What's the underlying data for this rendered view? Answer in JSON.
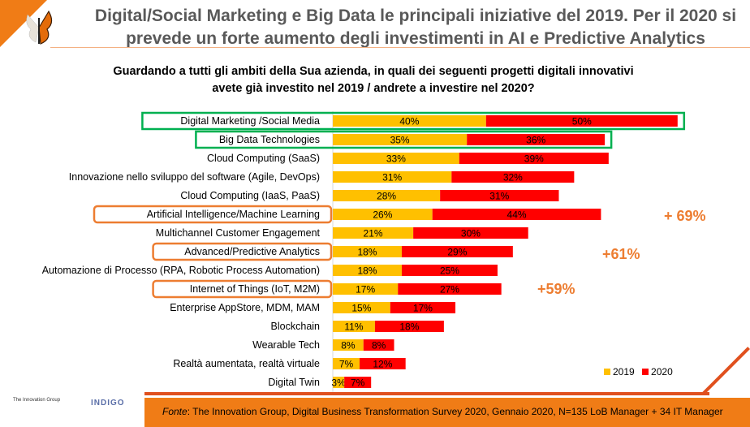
{
  "title": "Digital/Social Marketing e Big Data le principali iniziative del 2019. Per il 2020 si prevede un forte aumento degli investimenti in AI e Predictive Analytics",
  "question_line1": "Guardando a tutti gli ambiti della Sua azienda, in quali dei seguenti progetti digitali innovativi",
  "question_line2": "avete già investito nel 2019 / andrete a investire nel 2020?",
  "source_prefix": "Fonte",
  "source_text": ": The Innovation Group, Digital Business Transformation Survey 2020, Gennaio 2020, N=135 LoB Manager + 34 IT Manager",
  "logos": {
    "left": "The Innovation Group",
    "right": "INDIGO"
  },
  "colors": {
    "y2019": "#ffc000",
    "y2020": "#ff0000",
    "accent": "#ed7d31",
    "green": "#00b050"
  },
  "growth": [
    "+ 69%",
    "+61%",
    "+59%"
  ],
  "chart_data": {
    "type": "bar",
    "stacked": true,
    "orientation": "horizontal",
    "categories": [
      "Digital Marketing /Social Media",
      "Big Data Technologies",
      "Cloud Computing (SaaS)",
      "Innovazione nello sviluppo del software (Agile, DevOps)",
      "Cloud Computing (IaaS, PaaS)",
      "Artificial Intelligence/Machine Learning",
      "Multichannel Customer Engagement",
      "Advanced/Predictive Analytics",
      "Automazione di Processo (RPA, Robotic Process Automation)",
      "Internet of Things (IoT, M2M)",
      "Enterprise AppStore, MDM, MAM",
      "Blockchain",
      "Wearable Tech",
      "Realtà aumentata, realtà virtuale",
      "Digital Twin"
    ],
    "series": [
      {
        "name": "2019",
        "values": [
          40,
          35,
          33,
          31,
          28,
          26,
          21,
          18,
          18,
          17,
          15,
          11,
          8,
          7,
          3
        ]
      },
      {
        "name": "2020",
        "values": [
          50,
          36,
          39,
          32,
          31,
          44,
          30,
          29,
          25,
          27,
          17,
          18,
          8,
          12,
          7
        ]
      }
    ],
    "highlight_green": [
      0,
      1
    ],
    "highlight_orange": [
      5,
      7,
      9
    ],
    "legend": "bottom-right"
  }
}
